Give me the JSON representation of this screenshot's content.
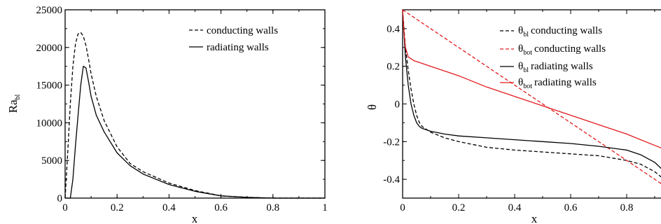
{
  "chart_data": [
    {
      "type": "line",
      "xlabel": "x",
      "ylabel_main": "Ra",
      "ylabel_sub": "bl",
      "xlim": [
        0,
        1
      ],
      "ylim": [
        0,
        25000
      ],
      "xticks": [
        0,
        0.2,
        0.4,
        0.6,
        0.8,
        1
      ],
      "xtick_labels": [
        "0",
        "0.2",
        "0.4",
        "0.6",
        "0.8",
        "1"
      ],
      "yticks": [
        0,
        5000,
        10000,
        15000,
        20000,
        25000
      ],
      "ytick_labels": [
        "0",
        "5000",
        "10000",
        "15000",
        "20000",
        "25000"
      ],
      "legend_position": "top-right",
      "series": [
        {
          "name": "conducting walls",
          "color": "#000000",
          "dash": "dashed",
          "x": [
            0,
            0.01,
            0.02,
            0.03,
            0.04,
            0.05,
            0.06,
            0.07,
            0.08,
            0.09,
            0.1,
            0.12,
            0.15,
            0.2,
            0.25,
            0.3,
            0.4,
            0.5,
            0.6,
            0.7,
            0.8,
            0.9,
            1.0
          ],
          "y": [
            0,
            6000,
            12500,
            17500,
            20500,
            21800,
            22000,
            21500,
            20300,
            18500,
            16500,
            13500,
            10300,
            6800,
            4600,
            3500,
            2000,
            1000,
            300,
            100,
            0,
            0,
            0
          ]
        },
        {
          "name": "radiating walls",
          "color": "#000000",
          "dash": "solid",
          "x": [
            0,
            0.01,
            0.02,
            0.03,
            0.04,
            0.05,
            0.06,
            0.07,
            0.08,
            0.09,
            0.1,
            0.12,
            0.15,
            0.2,
            0.25,
            0.3,
            0.4,
            0.5,
            0.6,
            0.7,
            0.8,
            0.9,
            1.0
          ],
          "y": [
            0,
            0,
            0,
            2500,
            7000,
            11000,
            15000,
            17500,
            17300,
            15500,
            13500,
            11000,
            8800,
            6000,
            4300,
            3200,
            1800,
            900,
            300,
            100,
            0,
            0,
            0
          ]
        }
      ]
    },
    {
      "type": "line",
      "xlabel": "x",
      "ylabel": "θ",
      "xlim": [
        0,
        1
      ],
      "ylim": [
        -0.5,
        0.5
      ],
      "xticks": [
        0,
        0.2,
        0.4,
        0.6,
        0.8
      ],
      "xtick_labels": [
        "0",
        "0.2",
        "0.4",
        "0.6",
        "0.8"
      ],
      "yticks": [
        -0.4,
        -0.2,
        0,
        0.2,
        0.4
      ],
      "ytick_labels": [
        "-0.4",
        "-0.2",
        "0",
        "0.2",
        "0.4"
      ],
      "legend_position": "top-right",
      "series": [
        {
          "name_main": "θ",
          "name_sub": "bl",
          "name_rest": "conducting walls",
          "color": "#000000",
          "dash": "dashed",
          "x": [
            0,
            0.01,
            0.02,
            0.03,
            0.04,
            0.05,
            0.06,
            0.07,
            0.08,
            0.1,
            0.15,
            0.2,
            0.3,
            0.4,
            0.5,
            0.6,
            0.7,
            0.8,
            0.85,
            0.9,
            0.95,
            1.0
          ],
          "y": [
            0.5,
            0.3,
            0.18,
            0.08,
            0.0,
            -0.06,
            -0.1,
            -0.12,
            -0.13,
            -0.15,
            -0.18,
            -0.2,
            -0.23,
            -0.245,
            -0.255,
            -0.265,
            -0.275,
            -0.3,
            -0.32,
            -0.36,
            -0.42,
            -0.5
          ]
        },
        {
          "name_main": "θ",
          "name_sub": "bot",
          "name_rest": "conducting walls",
          "color": "#e31a1c",
          "dash": "dashed",
          "x": [
            0,
            1.0
          ],
          "y": [
            0.5,
            -0.5
          ]
        },
        {
          "name_main": "θ",
          "name_sub": "bl",
          "name_rest": "radiating walls",
          "color": "#000000",
          "dash": "solid",
          "x": [
            0,
            0.01,
            0.02,
            0.03,
            0.04,
            0.05,
            0.06,
            0.07,
            0.08,
            0.1,
            0.15,
            0.2,
            0.3,
            0.4,
            0.5,
            0.6,
            0.7,
            0.8,
            0.85,
            0.9,
            0.95,
            1.0
          ],
          "y": [
            0.5,
            0.25,
            0.1,
            0.0,
            -0.06,
            -0.1,
            -0.12,
            -0.13,
            -0.135,
            -0.145,
            -0.16,
            -0.17,
            -0.18,
            -0.19,
            -0.2,
            -0.21,
            -0.225,
            -0.245,
            -0.27,
            -0.31,
            -0.38,
            -0.5
          ]
        },
        {
          "name_main": "θ",
          "name_sub": "bot",
          "name_rest": "radiating walls",
          "color": "#e31a1c",
          "dash": "solid",
          "x": [
            0,
            0.005,
            0.01,
            0.02,
            0.04,
            0.06,
            0.1,
            0.2,
            0.3,
            0.4,
            0.5,
            0.6,
            0.7,
            0.8,
            0.9,
            0.95,
            0.97,
            0.99,
            1.0
          ],
          "y": [
            0.5,
            0.38,
            0.3,
            0.25,
            0.23,
            0.22,
            0.2,
            0.15,
            0.09,
            0.04,
            -0.01,
            -0.06,
            -0.11,
            -0.16,
            -0.22,
            -0.25,
            -0.27,
            -0.32,
            -0.5
          ]
        }
      ]
    }
  ]
}
